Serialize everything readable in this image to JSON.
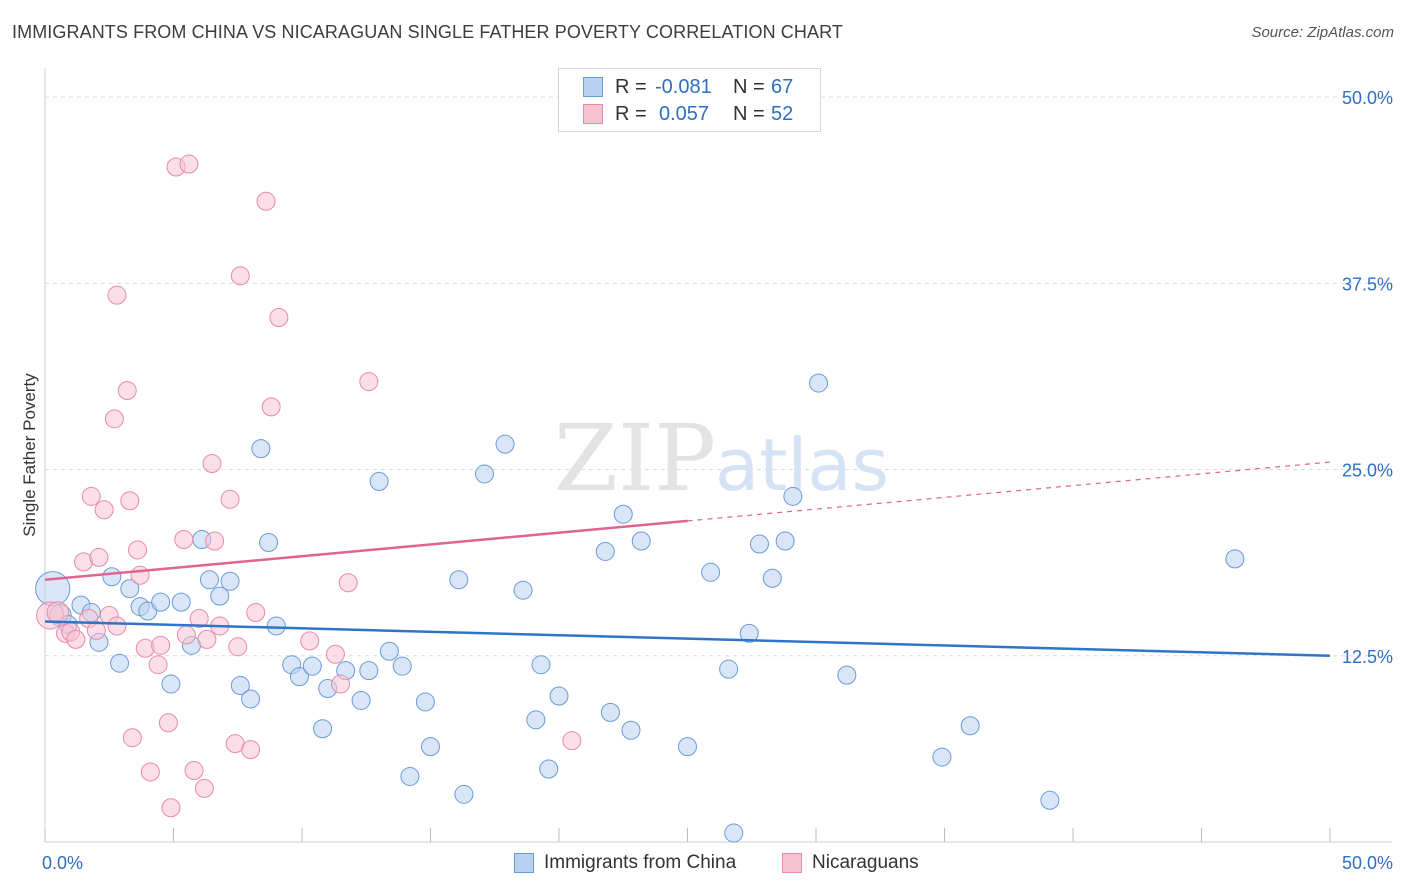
{
  "title": "IMMIGRANTS FROM CHINA VS NICARAGUAN SINGLE FATHER POVERTY CORRELATION CHART",
  "source": "Source: ZipAtlas.com",
  "watermark": {
    "zip": "ZIP",
    "atlas": "atlas"
  },
  "colors": {
    "blue_fill": "#b9d1f0",
    "blue_stroke": "#6b9ad8",
    "blue_line": "#2e74c9",
    "pink_fill": "#f7c3d3",
    "pink_stroke": "#e98aa8",
    "pink_line": "#e0648f",
    "axis_text": "#2e6fc4",
    "grid": "#dcdcdc"
  },
  "legend": {
    "rows": [
      {
        "r_label": "R =",
        "r_value": "-0.081",
        "n_label": "N =",
        "n_value": "67"
      },
      {
        "r_label": "R =",
        "r_value": "0.057",
        "n_label": "N =",
        "n_value": "52"
      }
    ]
  },
  "bottom_legend": [
    "Immigrants from China",
    "Nicaraguans"
  ],
  "chart_data": {
    "type": "scatter",
    "title": "IMMIGRANTS FROM CHINA VS NICARAGUAN SINGLE FATHER POVERTY CORRELATION CHART",
    "xlabel": "",
    "ylabel": "Single Father Poverty",
    "xlim": [
      0,
      50
    ],
    "ylim": [
      0,
      50
    ],
    "x_tick_labels": [
      "0.0%",
      "50.0%"
    ],
    "y_ticks": [
      12.5,
      25.0,
      37.5,
      50.0
    ],
    "y_tick_labels": [
      "12.5%",
      "25.0%",
      "37.5%",
      "50.0%"
    ],
    "grid": true,
    "legend_position": "top-center",
    "series": [
      {
        "name": "Immigrants from China",
        "trend": {
          "x": [
            0,
            50
          ],
          "y": [
            14.8,
            12.5
          ],
          "dashed_from": null
        },
        "points": [
          [
            0.3,
            17.0,
            1.9
          ],
          [
            0.6,
            15.2,
            1.2
          ],
          [
            0.9,
            14.6,
            1
          ],
          [
            1.4,
            15.9,
            1
          ],
          [
            1.8,
            15.4,
            1
          ],
          [
            2.1,
            13.4,
            1
          ],
          [
            2.6,
            17.8,
            1
          ],
          [
            2.9,
            12.0,
            1
          ],
          [
            3.3,
            17.0,
            1
          ],
          [
            3.7,
            15.8,
            1
          ],
          [
            4.0,
            15.5,
            1
          ],
          [
            4.5,
            16.1,
            1
          ],
          [
            4.9,
            10.6,
            1
          ],
          [
            5.3,
            16.1,
            1
          ],
          [
            5.7,
            13.2,
            1
          ],
          [
            6.1,
            20.3,
            1
          ],
          [
            6.4,
            17.6,
            1
          ],
          [
            6.8,
            16.5,
            1
          ],
          [
            7.2,
            17.5,
            1
          ],
          [
            7.6,
            10.5,
            1
          ],
          [
            8.0,
            9.6,
            1
          ],
          [
            8.4,
            26.4,
            1
          ],
          [
            8.7,
            20.1,
            1
          ],
          [
            9.0,
            14.5,
            1
          ],
          [
            9.6,
            11.9,
            1
          ],
          [
            9.9,
            11.1,
            1
          ],
          [
            10.4,
            11.8,
            1
          ],
          [
            10.8,
            7.6,
            1
          ],
          [
            11.0,
            10.3,
            1
          ],
          [
            11.7,
            11.5,
            1
          ],
          [
            12.3,
            9.5,
            1
          ],
          [
            12.6,
            11.5,
            1
          ],
          [
            13.0,
            24.2,
            1
          ],
          [
            13.4,
            12.8,
            1
          ],
          [
            13.9,
            11.8,
            1
          ],
          [
            14.2,
            4.4,
            1
          ],
          [
            14.8,
            9.4,
            1
          ],
          [
            15.0,
            6.4,
            1
          ],
          [
            16.1,
            17.6,
            1
          ],
          [
            16.3,
            3.2,
            1
          ],
          [
            17.1,
            24.7,
            1
          ],
          [
            17.9,
            26.7,
            1
          ],
          [
            18.6,
            16.9,
            1
          ],
          [
            19.1,
            8.2,
            1
          ],
          [
            19.3,
            11.9,
            1
          ],
          [
            19.6,
            4.9,
            1
          ],
          [
            20.0,
            9.8,
            1
          ],
          [
            21.8,
            19.5,
            1
          ],
          [
            22.0,
            8.7,
            1
          ],
          [
            22.5,
            22.0,
            1
          ],
          [
            22.8,
            7.5,
            1
          ],
          [
            23.2,
            20.2,
            1
          ],
          [
            25.0,
            6.4,
            1
          ],
          [
            25.9,
            18.1,
            1
          ],
          [
            26.6,
            11.6,
            1
          ],
          [
            26.8,
            0.6,
            1
          ],
          [
            27.4,
            14.0,
            1
          ],
          [
            27.8,
            20.0,
            1
          ],
          [
            28.3,
            17.7,
            1
          ],
          [
            28.8,
            20.2,
            1
          ],
          [
            29.1,
            23.2,
            1
          ],
          [
            30.1,
            30.8,
            1
          ],
          [
            31.2,
            11.2,
            1
          ],
          [
            34.9,
            5.7,
            1
          ],
          [
            36.0,
            7.8,
            1
          ],
          [
            39.1,
            2.8,
            1
          ],
          [
            46.3,
            19.0,
            1
          ]
        ]
      },
      {
        "name": "Nicaraguans",
        "trend": {
          "x": [
            0,
            50
          ],
          "y": [
            17.6,
            25.5
          ],
          "dashed_from": 25
        },
        "points": [
          [
            0.2,
            15.2,
            1.5
          ],
          [
            0.5,
            15.4,
            1.2
          ],
          [
            0.8,
            14.0,
            1
          ],
          [
            1.0,
            14.1,
            1
          ],
          [
            1.2,
            13.6,
            1
          ],
          [
            1.5,
            18.8,
            1
          ],
          [
            1.7,
            15.0,
            1
          ],
          [
            1.8,
            23.2,
            1
          ],
          [
            2.0,
            14.2,
            1
          ],
          [
            2.1,
            19.1,
            1
          ],
          [
            2.3,
            22.3,
            1
          ],
          [
            2.5,
            15.2,
            1
          ],
          [
            2.8,
            14.5,
            1
          ],
          [
            2.8,
            36.7,
            1
          ],
          [
            2.7,
            28.4,
            1
          ],
          [
            3.2,
            30.3,
            1
          ],
          [
            3.3,
            22.9,
            1
          ],
          [
            3.4,
            7.0,
            1
          ],
          [
            3.6,
            19.6,
            1
          ],
          [
            3.7,
            17.9,
            1
          ],
          [
            3.9,
            13.0,
            1
          ],
          [
            4.1,
            4.7,
            1
          ],
          [
            4.4,
            11.9,
            1
          ],
          [
            4.5,
            13.2,
            1
          ],
          [
            4.8,
            8.0,
            1
          ],
          [
            4.9,
            2.3,
            1
          ],
          [
            5.1,
            45.3,
            1
          ],
          [
            5.4,
            20.3,
            1
          ],
          [
            5.5,
            13.9,
            1
          ],
          [
            5.6,
            45.5,
            1
          ],
          [
            5.8,
            4.8,
            1
          ],
          [
            6.0,
            15.0,
            1
          ],
          [
            6.2,
            3.6,
            1
          ],
          [
            6.3,
            13.6,
            1
          ],
          [
            6.5,
            25.4,
            1
          ],
          [
            6.6,
            20.2,
            1
          ],
          [
            6.8,
            14.5,
            1
          ],
          [
            7.2,
            23.0,
            1
          ],
          [
            7.4,
            6.6,
            1
          ],
          [
            7.5,
            13.1,
            1
          ],
          [
            7.6,
            38.0,
            1
          ],
          [
            8.0,
            6.2,
            1
          ],
          [
            8.2,
            15.4,
            1
          ],
          [
            8.6,
            43.0,
            1
          ],
          [
            8.8,
            29.2,
            1
          ],
          [
            9.1,
            35.2,
            1
          ],
          [
            10.3,
            13.5,
            1
          ],
          [
            11.3,
            12.6,
            1
          ],
          [
            11.5,
            10.6,
            1
          ],
          [
            11.8,
            17.4,
            1
          ],
          [
            12.6,
            30.9,
            1
          ],
          [
            20.5,
            6.8,
            1
          ]
        ]
      }
    ]
  }
}
